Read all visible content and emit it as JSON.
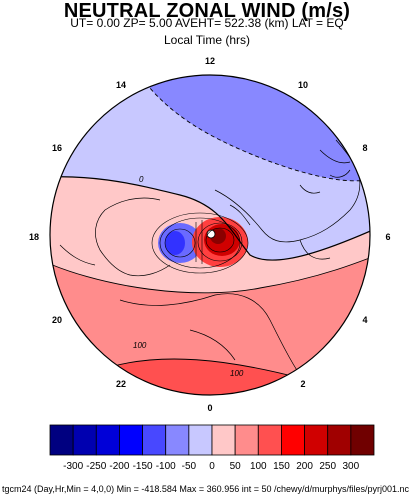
{
  "chart_data": {
    "type": "heatmap",
    "title": "NEUTRAL ZONAL WIND (m/s)",
    "subtitle": "UT=  0.00 ZP=  5.00 AVEHT= 522.38 (km) LAT = EQ",
    "local_time_label": "Local Time (hrs)",
    "hour_labels": [
      "12",
      "10",
      "8",
      "6",
      "4",
      "2",
      "0",
      "22",
      "20",
      "18",
      "16",
      "14"
    ],
    "contour_labels": [
      {
        "text": "0",
        "value": 0
      },
      {
        "text": "100",
        "value": 100
      },
      {
        "text": "100",
        "value": 100
      }
    ],
    "colorbar": {
      "ticks": [
        "-300",
        "-250",
        "-200",
        "-150",
        "-100",
        "-50",
        "0",
        "50",
        "100",
        "150",
        "200",
        "250",
        "300"
      ],
      "colors": [
        "#000080",
        "#0000b0",
        "#0000d8",
        "#0000ff",
        "#4848ff",
        "#8888ff",
        "#c8c8ff",
        "#ffc8c8",
        "#ff8c8c",
        "#ff5050",
        "#ff0000",
        "#d00000",
        "#a00000",
        "#700000"
      ]
    },
    "min": -418.584,
    "max": 360.956,
    "interval": 50,
    "footer": "tgcm24  (Day,Hr,Min = 4,0,0) Min = -418.584  Max  = 360.956  int = 50 /chewy/d/murphys/files/pyrj001.nc"
  }
}
